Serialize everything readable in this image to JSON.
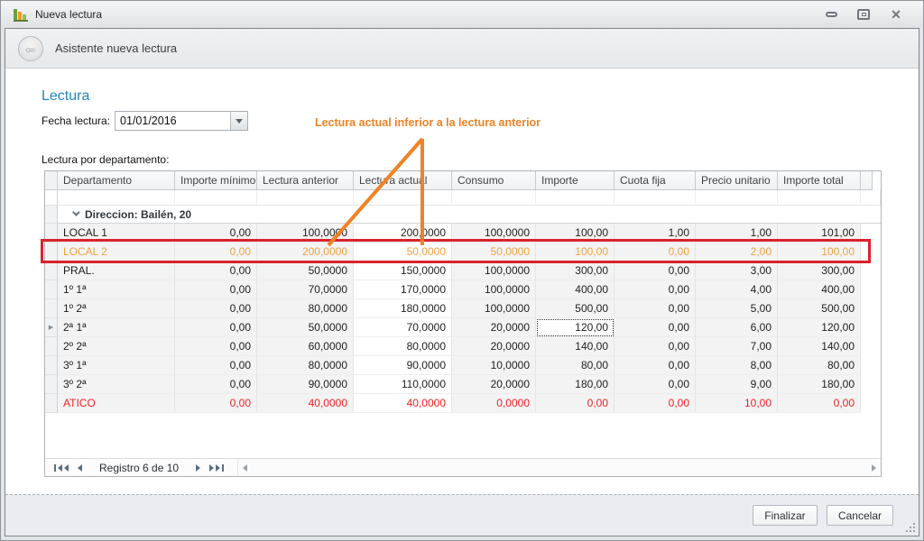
{
  "window": {
    "title": "Nueva lectura"
  },
  "wizard": {
    "header": "Asistente nueva lectura"
  },
  "page": {
    "title": "Lectura",
    "date_label": "Fecha lectura:",
    "date_value": "01/01/2016",
    "annotation": "Lectura actual inferior a la lectura anterior",
    "grid_label": "Lectura por departamento:"
  },
  "grid": {
    "columns": [
      "Departamento",
      "Importe mínimo",
      "Lectura anterior",
      "Lectura actual",
      "Consumo",
      "Importe",
      "Cuota fija",
      "Precio unitario",
      "Importe total"
    ],
    "group": {
      "label": "Direccion: Bailén, 20"
    },
    "rows": [
      {
        "state": "normal",
        "selected": false,
        "focus_col": null,
        "cells": [
          "LOCAL 1",
          "0,00",
          "100,0000",
          "200,0000",
          "100,0000",
          "100,00",
          "1,00",
          "1,00",
          "101,00"
        ]
      },
      {
        "state": "warning",
        "selected": false,
        "focus_col": null,
        "cells": [
          "LOCAL 2",
          "0,00",
          "200,0000",
          "50,0000",
          "50,0000",
          "100,00",
          "0,00",
          "2,00",
          "100,00"
        ]
      },
      {
        "state": "normal",
        "selected": false,
        "focus_col": null,
        "cells": [
          "PRAL.",
          "0,00",
          "50,0000",
          "150,0000",
          "100,0000",
          "300,00",
          "0,00",
          "3,00",
          "300,00"
        ]
      },
      {
        "state": "normal",
        "selected": false,
        "focus_col": null,
        "cells": [
          "1º 1ª",
          "0,00",
          "70,0000",
          "170,0000",
          "100,0000",
          "400,00",
          "0,00",
          "4,00",
          "400,00"
        ]
      },
      {
        "state": "normal",
        "selected": false,
        "focus_col": null,
        "cells": [
          "1º 2ª",
          "0,00",
          "80,0000",
          "180,0000",
          "100,0000",
          "500,00",
          "0,00",
          "5,00",
          "500,00"
        ]
      },
      {
        "state": "normal",
        "selected": true,
        "focus_col": 5,
        "cells": [
          "2ª 1ª",
          "0,00",
          "50,0000",
          "70,0000",
          "20,0000",
          "120,00",
          "0,00",
          "6,00",
          "120,00"
        ]
      },
      {
        "state": "normal",
        "selected": false,
        "focus_col": null,
        "cells": [
          "2º 2ª",
          "0,00",
          "60,0000",
          "80,0000",
          "20,0000",
          "140,00",
          "0,00",
          "7,00",
          "140,00"
        ]
      },
      {
        "state": "normal",
        "selected": false,
        "focus_col": null,
        "cells": [
          "3º 1ª",
          "0,00",
          "80,0000",
          "90,0000",
          "10,0000",
          "80,00",
          "0,00",
          "8,00",
          "80,00"
        ]
      },
      {
        "state": "normal",
        "selected": false,
        "focus_col": null,
        "cells": [
          "3º 2ª",
          "0,00",
          "90,0000",
          "110,0000",
          "20,0000",
          "180,00",
          "0,00",
          "9,00",
          "180,00"
        ]
      },
      {
        "state": "error",
        "selected": false,
        "focus_col": null,
        "cells": [
          "ATICO",
          "0,00",
          "40,0000",
          "40,0000",
          "0,0000",
          "0,00",
          "0,00",
          "10,00",
          "0,00"
        ]
      }
    ],
    "nav": {
      "record_text": "Registro 6 de 10"
    }
  },
  "footer": {
    "finish_label": "Finalizar",
    "cancel_label": "Cancelar"
  },
  "colors": {
    "accent_blue": "#1e86c7",
    "annotation_orange": "#f08223",
    "warning_orange": "#efa33d",
    "error_red": "#ee2222",
    "highlight_red": "#d8232b"
  }
}
